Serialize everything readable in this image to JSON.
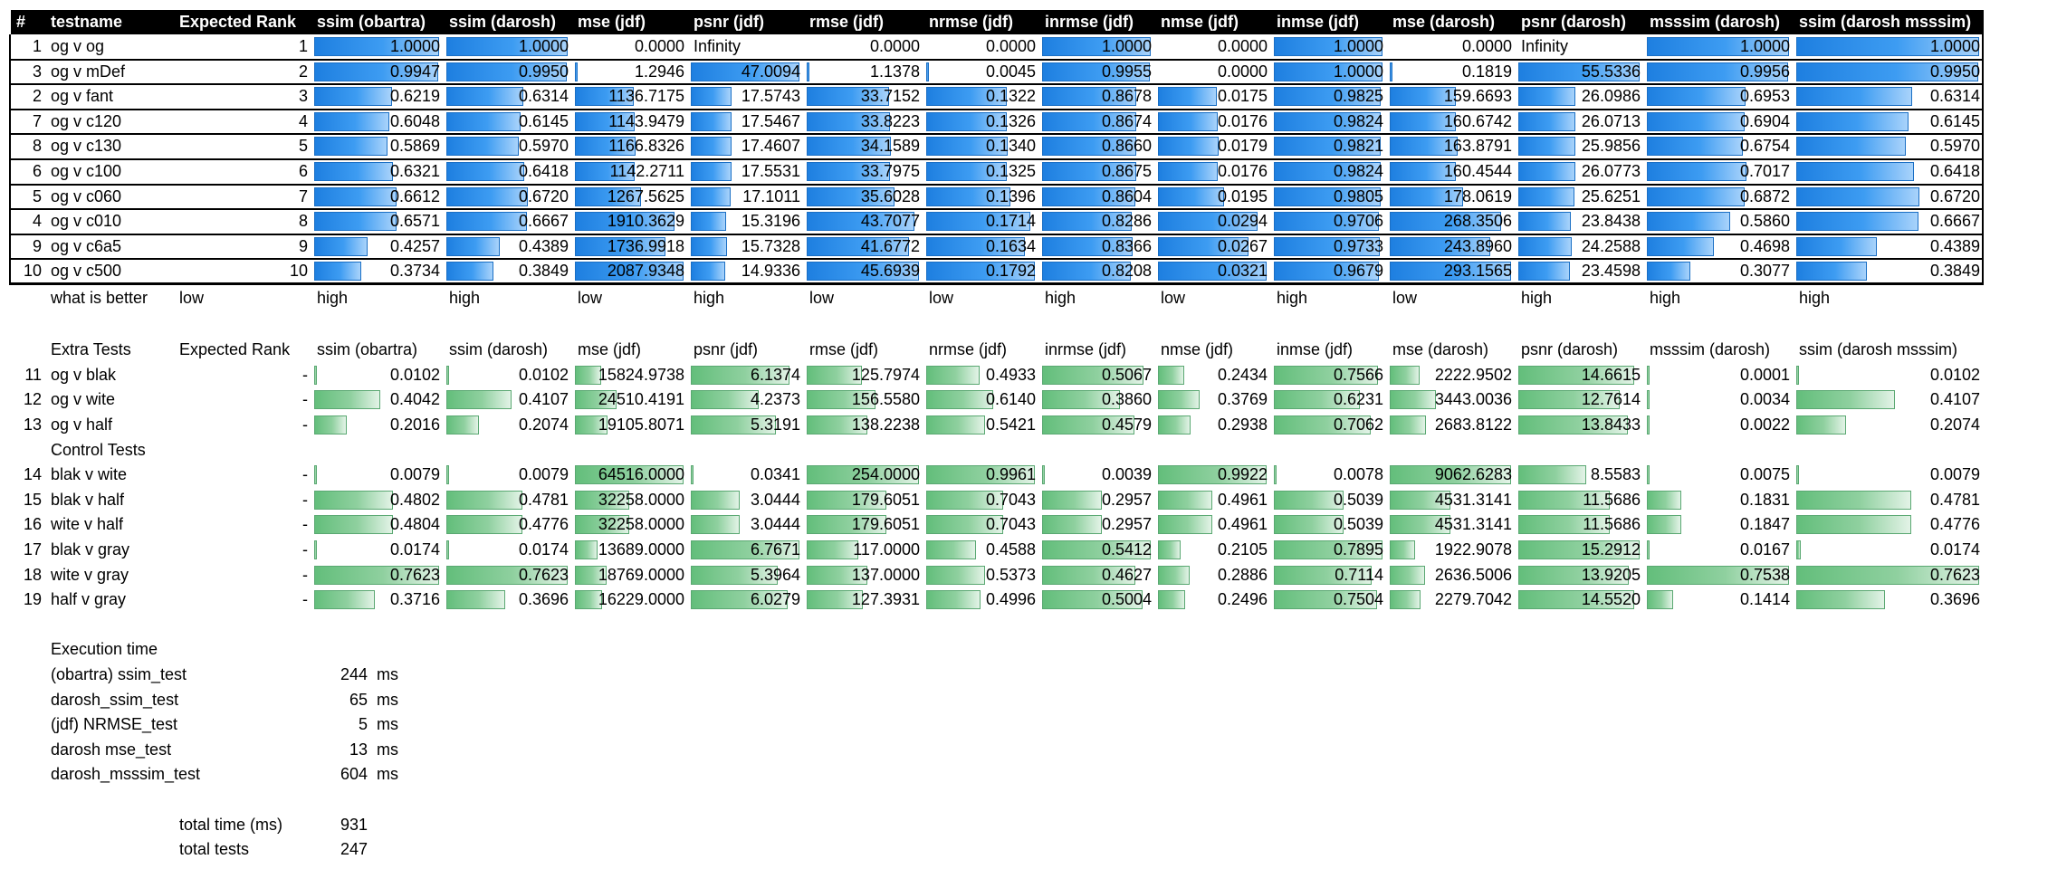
{
  "columns": [
    "#",
    "testname",
    "Expected Rank",
    "ssim (obartra)",
    "ssim (darosh)",
    "mse (jdf)",
    "psnr (jdf)",
    "rmse (jdf)",
    "nrmse (jdf)",
    "inrmse (jdf)",
    "nmse (jdf)",
    "inmse (jdf)",
    "mse (darosh)",
    "psnr (darosh)",
    "msssim (darosh)",
    "ssim (darosh msssim)"
  ],
  "main_rows": [
    {
      "num": "1",
      "name": "og v og",
      "rank": "1",
      "vals": [
        "1.0000",
        "1.0000",
        "0.0000",
        "Infinity",
        "0.0000",
        "0.0000",
        "1.0000",
        "0.0000",
        "1.0000",
        "0.0000",
        "Infinity",
        "1.0000",
        "1.0000"
      ]
    },
    {
      "num": "3",
      "name": "og v mDef",
      "rank": "2",
      "vals": [
        "0.9947",
        "0.9950",
        "1.2946",
        "47.0094",
        "1.1378",
        "0.0045",
        "0.9955",
        "0.0000",
        "1.0000",
        "0.1819",
        "55.5336",
        "0.9956",
        "0.9950"
      ]
    },
    {
      "num": "2",
      "name": "og v fant",
      "rank": "3",
      "vals": [
        "0.6219",
        "0.6314",
        "1136.7175",
        "17.5743",
        "33.7152",
        "0.1322",
        "0.8678",
        "0.0175",
        "0.9825",
        "159.6693",
        "26.0986",
        "0.6953",
        "0.6314"
      ]
    },
    {
      "num": "7",
      "name": "og v c120",
      "rank": "4",
      "vals": [
        "0.6048",
        "0.6145",
        "1143.9479",
        "17.5467",
        "33.8223",
        "0.1326",
        "0.8674",
        "0.0176",
        "0.9824",
        "160.6742",
        "26.0713",
        "0.6904",
        "0.6145"
      ]
    },
    {
      "num": "8",
      "name": "og v c130",
      "rank": "5",
      "vals": [
        "0.5869",
        "0.5970",
        "1166.8326",
        "17.4607",
        "34.1589",
        "0.1340",
        "0.8660",
        "0.0179",
        "0.9821",
        "163.8791",
        "25.9856",
        "0.6754",
        "0.5970"
      ]
    },
    {
      "num": "6",
      "name": "og v c100",
      "rank": "6",
      "vals": [
        "0.6321",
        "0.6418",
        "1142.2711",
        "17.5531",
        "33.7975",
        "0.1325",
        "0.8675",
        "0.0176",
        "0.9824",
        "160.4544",
        "26.0773",
        "0.7017",
        "0.6418"
      ]
    },
    {
      "num": "5",
      "name": "og v c060",
      "rank": "7",
      "vals": [
        "0.6612",
        "0.6720",
        "1267.5625",
        "17.1011",
        "35.6028",
        "0.1396",
        "0.8604",
        "0.0195",
        "0.9805",
        "178.0619",
        "25.6251",
        "0.6872",
        "0.6720"
      ]
    },
    {
      "num": "4",
      "name": "og v c010",
      "rank": "8",
      "vals": [
        "0.6571",
        "0.6667",
        "1910.3629",
        "15.3196",
        "43.7077",
        "0.1714",
        "0.8286",
        "0.0294",
        "0.9706",
        "268.3506",
        "23.8438",
        "0.5860",
        "0.6667"
      ]
    },
    {
      "num": "9",
      "name": "og v c6a5",
      "rank": "9",
      "vals": [
        "0.4257",
        "0.4389",
        "1736.9918",
        "15.7328",
        "41.6772",
        "0.1634",
        "0.8366",
        "0.0267",
        "0.9733",
        "243.8960",
        "24.2588",
        "0.4698",
        "0.4389"
      ]
    },
    {
      "num": "10",
      "name": "og v c500",
      "rank": "10",
      "vals": [
        "0.3734",
        "0.3849",
        "2087.9348",
        "14.9336",
        "45.6939",
        "0.1792",
        "0.8208",
        "0.0321",
        "0.9679",
        "293.1565",
        "23.4598",
        "0.3077",
        "0.3849"
      ]
    }
  ],
  "better_row": {
    "label": "what is better",
    "vals": [
      "low",
      "high",
      "high",
      "low",
      "high",
      "low",
      "low",
      "high",
      "low",
      "high",
      "low",
      "high",
      "high",
      "high"
    ]
  },
  "extra_header": {
    "title": "Extra Tests",
    "rank": "Expected Rank",
    "cols": [
      "ssim (obartra)",
      "ssim (darosh)",
      "mse (jdf)",
      "psnr (jdf)",
      "rmse (jdf)",
      "nrmse (jdf)",
      "inrmse (jdf)",
      "nmse (jdf)",
      "inmse (jdf)",
      "mse (darosh)",
      "psnr (darosh)",
      "msssim (darosh)",
      "ssim (darosh msssim)"
    ]
  },
  "extra_rows": [
    {
      "num": "11",
      "name": "og v blak",
      "rank": "-",
      "vals": [
        "0.0102",
        "0.0102",
        "15824.9738",
        "6.1374",
        "125.7974",
        "0.4933",
        "0.5067",
        "0.2434",
        "0.7566",
        "2222.9502",
        "14.6615",
        "0.0001",
        "0.0102"
      ]
    },
    {
      "num": "12",
      "name": "og v wite",
      "rank": "-",
      "vals": [
        "0.4042",
        "0.4107",
        "24510.4191",
        "4.2373",
        "156.5580",
        "0.6140",
        "0.3860",
        "0.3769",
        "0.6231",
        "3443.0036",
        "12.7614",
        "0.0034",
        "0.4107"
      ]
    },
    {
      "num": "13",
      "name": "og v half",
      "rank": "-",
      "vals": [
        "0.2016",
        "0.2074",
        "19105.8071",
        "5.3191",
        "138.2238",
        "0.5421",
        "0.4579",
        "0.2938",
        "0.7062",
        "2683.8122",
        "13.8433",
        "0.0022",
        "0.2074"
      ]
    }
  ],
  "control_title": "Control Tests",
  "control_rows": [
    {
      "num": "14",
      "name": "blak v wite",
      "rank": "-",
      "vals": [
        "0.0079",
        "0.0079",
        "64516.0000",
        "0.0341",
        "254.0000",
        "0.9961",
        "0.0039",
        "0.9922",
        "0.0078",
        "9062.6283",
        "8.5583",
        "0.0075",
        "0.0079"
      ]
    },
    {
      "num": "15",
      "name": "blak v half",
      "rank": "-",
      "vals": [
        "0.4802",
        "0.4781",
        "32258.0000",
        "3.0444",
        "179.6051",
        "0.7043",
        "0.2957",
        "0.4961",
        "0.5039",
        "4531.3141",
        "11.5686",
        "0.1831",
        "0.4781"
      ]
    },
    {
      "num": "16",
      "name": "wite v half",
      "rank": "-",
      "vals": [
        "0.4804",
        "0.4776",
        "32258.0000",
        "3.0444",
        "179.6051",
        "0.7043",
        "0.2957",
        "0.4961",
        "0.5039",
        "4531.3141",
        "11.5686",
        "0.1847",
        "0.4776"
      ]
    },
    {
      "num": "17",
      "name": "blak v gray",
      "rank": "-",
      "vals": [
        "0.0174",
        "0.0174",
        "13689.0000",
        "6.7671",
        "117.0000",
        "0.4588",
        "0.5412",
        "0.2105",
        "0.7895",
        "1922.9078",
        "15.2912",
        "0.0167",
        "0.0174"
      ]
    },
    {
      "num": "18",
      "name": "wite v gray",
      "rank": "-",
      "vals": [
        "0.7623",
        "0.7623",
        "18769.0000",
        "5.3964",
        "137.0000",
        "0.5373",
        "0.4627",
        "0.2886",
        "0.7114",
        "2636.5006",
        "13.9205",
        "0.7538",
        "0.7623"
      ]
    },
    {
      "num": "19",
      "name": "half v gray",
      "rank": "-",
      "vals": [
        "0.3716",
        "0.3696",
        "16229.0000",
        "6.0279",
        "127.3931",
        "0.4996",
        "0.5004",
        "0.2496",
        "0.7504",
        "2279.7042",
        "14.5520",
        "0.1414",
        "0.3696"
      ]
    }
  ],
  "execution": {
    "title": "Execution time",
    "items": [
      {
        "label": "(obartra) ssim_test",
        "value": "244",
        "unit": "ms"
      },
      {
        "label": "darosh_ssim_test",
        "value": "65",
        "unit": "ms"
      },
      {
        "label": "(jdf) NRMSE_test",
        "value": "5",
        "unit": "ms"
      },
      {
        "label": "darosh mse_test",
        "value": "13",
        "unit": "ms"
      },
      {
        "label": "darosh_msssim_test",
        "value": "604",
        "unit": "ms"
      }
    ],
    "total_time_label": "total time (ms)",
    "total_time_value": "931",
    "total_tests_label": "total tests",
    "total_tests_value": "247"
  },
  "colors": {
    "header_bg": "#000000",
    "blue_bar": "#2389e8",
    "green_bar": "#6cc283"
  }
}
